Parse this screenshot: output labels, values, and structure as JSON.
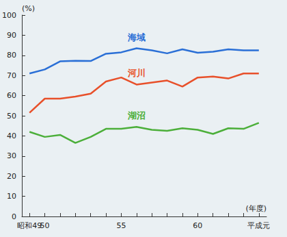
{
  "chart_data": {
    "type": "line",
    "y_label": "(%)",
    "x_label": "(年度)",
    "categories": [
      "昭和49",
      "50",
      null,
      null,
      null,
      null,
      "55",
      null,
      null,
      null,
      null,
      "60",
      null,
      null,
      null,
      "平成元"
    ],
    "series": [
      {
        "name": "海域",
        "color": "#2a6fd6",
        "values": [
          71,
          73,
          77,
          77.3,
          77.2,
          80.8,
          81.5,
          83.5,
          82.5,
          81,
          83,
          81.3,
          81.8,
          83,
          82.5,
          82.5
        ]
      },
      {
        "name": "河川",
        "color": "#e8502a",
        "values": [
          51.5,
          58.5,
          58.5,
          59.5,
          61,
          67,
          69,
          65.5,
          66.5,
          67.5,
          64.5,
          69,
          69.5,
          68.5,
          71,
          71
        ]
      },
      {
        "name": "湖沼",
        "color": "#4caf3a",
        "values": [
          42,
          39.5,
          40.5,
          36.5,
          39.5,
          43.5,
          43.5,
          44.5,
          43,
          42.5,
          43.8,
          43,
          41,
          43.8,
          43.5,
          46.5
        ]
      }
    ],
    "ylim": [
      0,
      100
    ],
    "yticks": [
      0,
      10,
      20,
      30,
      40,
      50,
      60,
      70,
      80,
      90,
      100
    ],
    "grid": false
  }
}
